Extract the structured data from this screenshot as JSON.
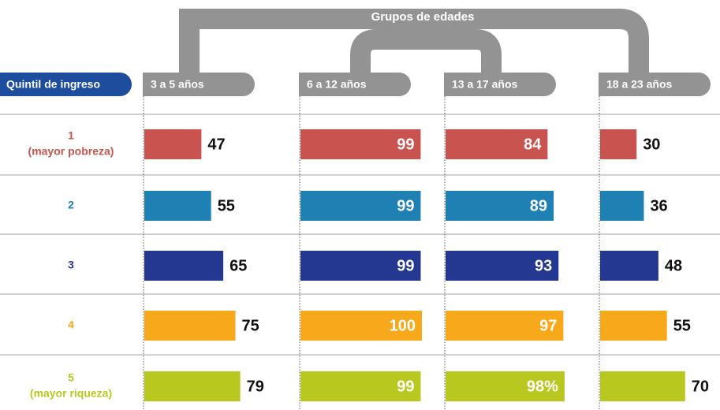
{
  "chart_data": {
    "type": "bar",
    "orientation": "horizontal",
    "title": "Grupos de edades",
    "category_label": "Quintil de ingreso",
    "categories": [
      "1",
      "2",
      "3",
      "4",
      "5"
    ],
    "category_notes": [
      "(mayor pobreza)",
      null,
      null,
      null,
      "(mayor riqueza)"
    ],
    "category_colors": [
      "#c9534f",
      "#1f80b4",
      "#253891",
      "#f7a81b",
      "#b9c81f"
    ],
    "xlim": [
      0,
      100
    ],
    "series": [
      {
        "name": "3 a 5 años",
        "values": [
          47,
          55,
          65,
          75,
          79
        ]
      },
      {
        "name": "6 a 12 años",
        "values": [
          99,
          99,
          99,
          100,
          99
        ]
      },
      {
        "name": "13 a 17 años",
        "values": [
          84,
          89,
          93,
          97,
          98
        ],
        "value_labels": [
          "84",
          "89",
          "93",
          "97",
          "98%"
        ]
      },
      {
        "name": "18 a 23 años",
        "values": [
          30,
          36,
          48,
          55,
          70
        ]
      }
    ]
  }
}
